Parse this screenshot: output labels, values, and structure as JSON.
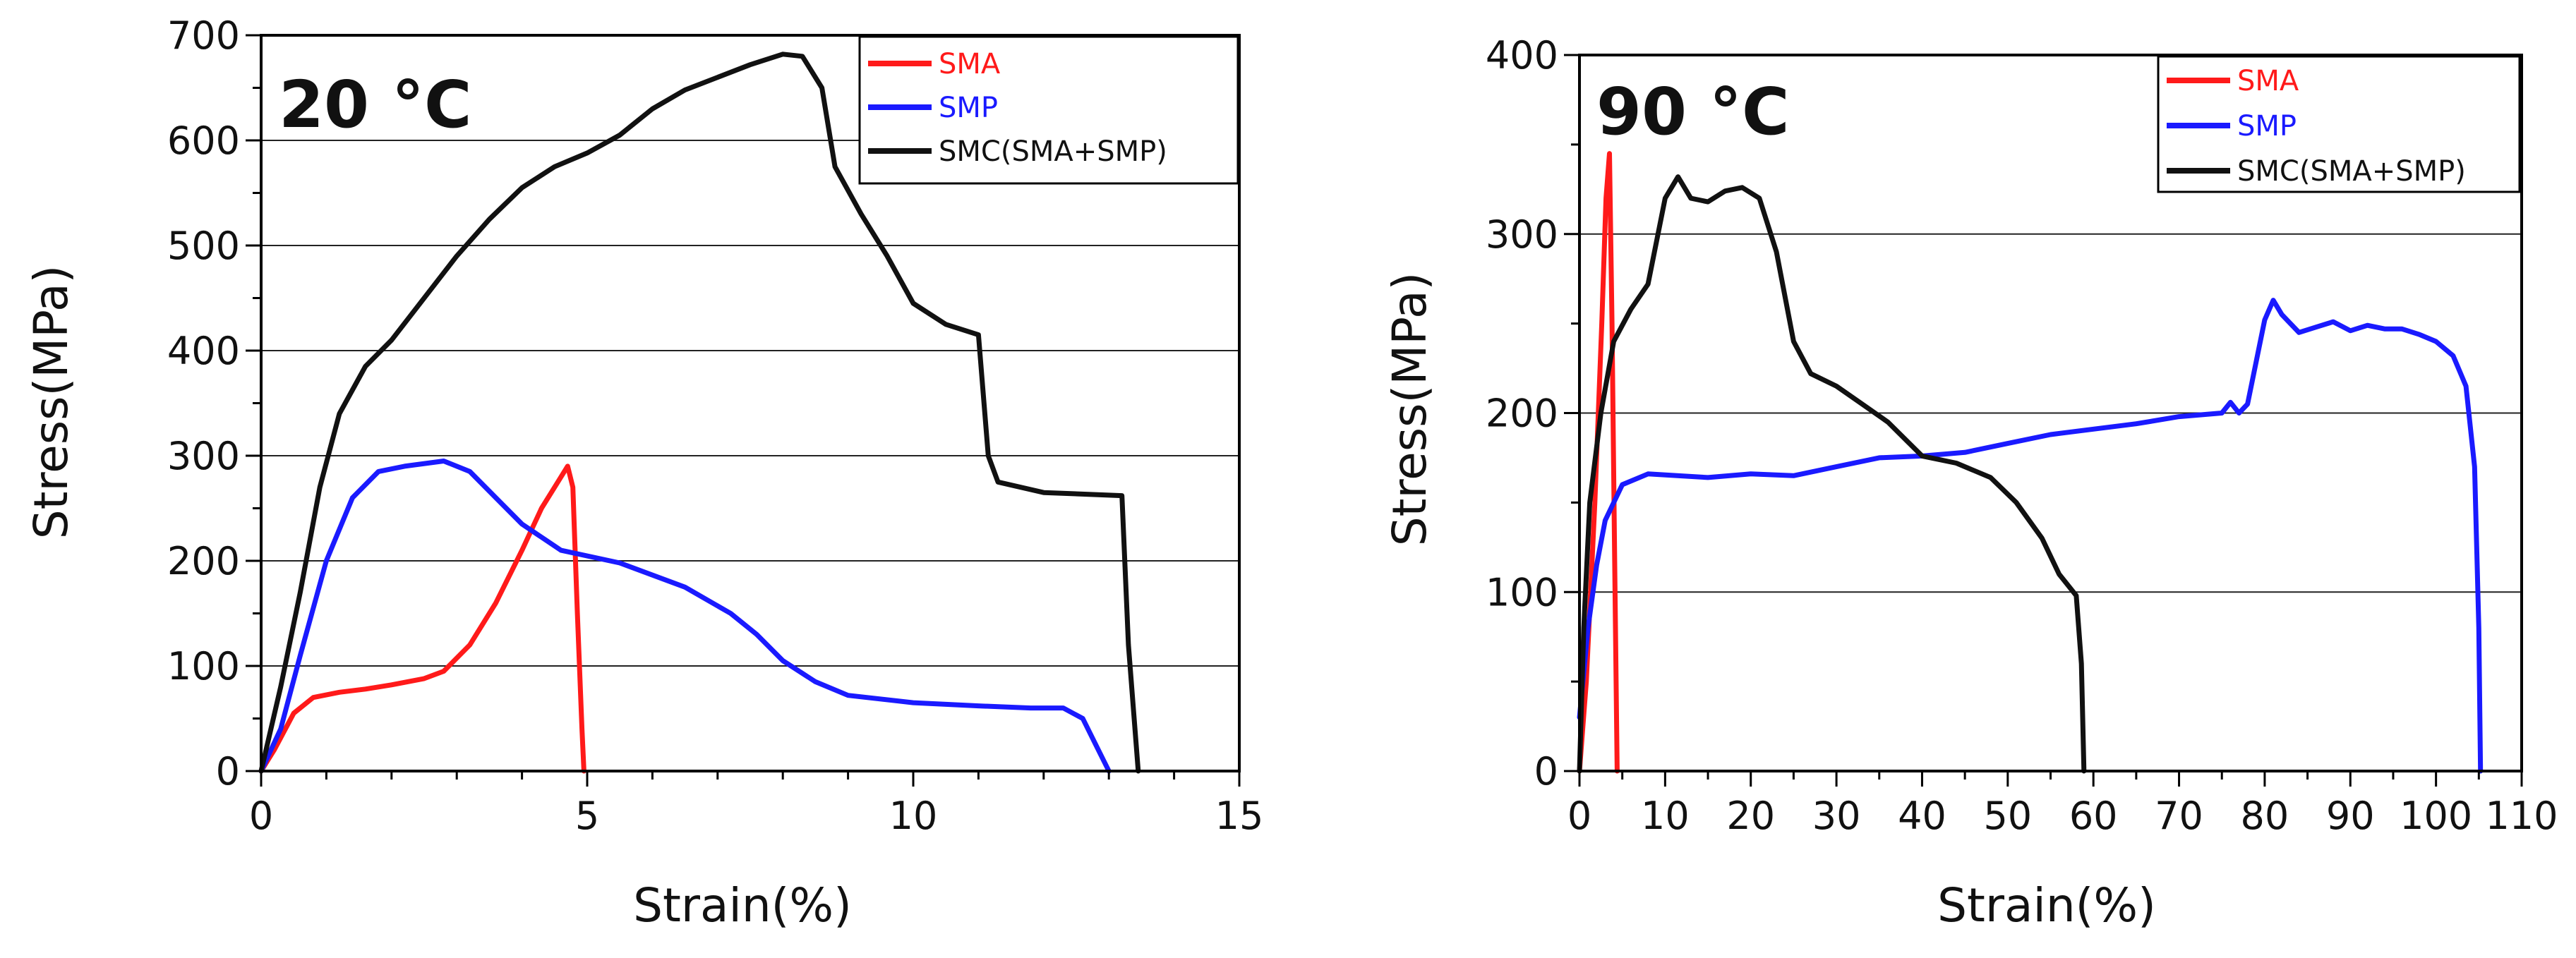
{
  "chart_data": [
    {
      "type": "line",
      "panel": "left",
      "title": "",
      "annotation": "20 °C",
      "xlabel": "Strain(%)",
      "ylabel": "Stress(MPa)",
      "xlim": [
        0,
        15
      ],
      "ylim": [
        0,
        700
      ],
      "xticks": [
        0,
        5,
        10,
        15
      ],
      "xtick_labels": [
        "0",
        "5",
        "10",
        "15"
      ],
      "yticks": [
        0,
        100,
        200,
        300,
        400,
        500,
        600,
        700
      ],
      "ytick_labels": [
        "0",
        "100",
        "200",
        "300",
        "400",
        "500",
        "600",
        "700"
      ],
      "x_minor_step": 1,
      "y_minor_step": 50,
      "grid": "horizontal",
      "legend_position": "top-right",
      "series": [
        {
          "name": "SMA",
          "color": "#ff1a1a",
          "points": [
            [
              0,
              0
            ],
            [
              0.2,
              20
            ],
            [
              0.5,
              55
            ],
            [
              0.8,
              70
            ],
            [
              1.2,
              75
            ],
            [
              1.6,
              78
            ],
            [
              2.0,
              82
            ],
            [
              2.5,
              88
            ],
            [
              2.8,
              95
            ],
            [
              3.2,
              120
            ],
            [
              3.6,
              160
            ],
            [
              4.0,
              210
            ],
            [
              4.3,
              250
            ],
            [
              4.55,
              275
            ],
            [
              4.7,
              290
            ],
            [
              4.78,
              270
            ],
            [
              4.85,
              150
            ],
            [
              4.92,
              40
            ],
            [
              4.95,
              0
            ]
          ]
        },
        {
          "name": "SMP",
          "color": "#1a1aff",
          "points": [
            [
              0,
              0
            ],
            [
              0.3,
              40
            ],
            [
              0.6,
              110
            ],
            [
              1.0,
              200
            ],
            [
              1.4,
              260
            ],
            [
              1.8,
              285
            ],
            [
              2.2,
              290
            ],
            [
              2.8,
              295
            ],
            [
              3.2,
              285
            ],
            [
              3.6,
              260
            ],
            [
              4.0,
              235
            ],
            [
              4.6,
              210
            ],
            [
              5.5,
              198
            ],
            [
              6.5,
              175
            ],
            [
              7.2,
              150
            ],
            [
              7.6,
              130
            ],
            [
              8.0,
              105
            ],
            [
              8.5,
              85
            ],
            [
              9.0,
              72
            ],
            [
              10.0,
              65
            ],
            [
              11.0,
              62
            ],
            [
              11.8,
              60
            ],
            [
              12.3,
              60
            ],
            [
              12.6,
              50
            ],
            [
              12.8,
              25
            ],
            [
              13.0,
              0
            ]
          ]
        },
        {
          "name": "SMC(SMA+SMP)",
          "color": "#111111",
          "points": [
            [
              0,
              0
            ],
            [
              0.3,
              80
            ],
            [
              0.6,
              170
            ],
            [
              0.9,
              270
            ],
            [
              1.2,
              340
            ],
            [
              1.6,
              385
            ],
            [
              2.0,
              410
            ],
            [
              2.5,
              450
            ],
            [
              3.0,
              490
            ],
            [
              3.5,
              525
            ],
            [
              4.0,
              555
            ],
            [
              4.5,
              575
            ],
            [
              5.0,
              588
            ],
            [
              5.5,
              605
            ],
            [
              6.0,
              630
            ],
            [
              6.5,
              648
            ],
            [
              7.0,
              660
            ],
            [
              7.5,
              672
            ],
            [
              8.0,
              682
            ],
            [
              8.3,
              680
            ],
            [
              8.6,
              650
            ],
            [
              8.8,
              575
            ],
            [
              9.2,
              530
            ],
            [
              9.6,
              490
            ],
            [
              10.0,
              445
            ],
            [
              10.5,
              425
            ],
            [
              11.0,
              415
            ],
            [
              11.15,
              300
            ],
            [
              11.3,
              275
            ],
            [
              12.0,
              265
            ],
            [
              13.2,
              262
            ],
            [
              13.3,
              120
            ],
            [
              13.45,
              0
            ]
          ]
        }
      ]
    },
    {
      "type": "line",
      "panel": "right",
      "title": "",
      "annotation": "90 °C",
      "xlabel": "Strain(%)",
      "ylabel": "Stress(MPa)",
      "xlim": [
        0,
        110
      ],
      "ylim": [
        0,
        400
      ],
      "xticks": [
        0,
        10,
        20,
        30,
        40,
        50,
        60,
        70,
        80,
        90,
        100,
        110
      ],
      "xtick_labels": [
        "0",
        "10",
        "20",
        "30",
        "40",
        "50",
        "60",
        "70",
        "80",
        "90",
        "100",
        "110"
      ],
      "yticks": [
        0,
        100,
        200,
        300,
        400
      ],
      "ytick_labels": [
        "0",
        "100",
        "200",
        "300",
        "400"
      ],
      "x_minor_step": 5,
      "y_minor_step": 50,
      "grid": "horizontal",
      "legend_position": "top-right",
      "series": [
        {
          "name": "SMA",
          "color": "#ff1a1a",
          "points": [
            [
              0,
              0
            ],
            [
              0.8,
              50
            ],
            [
              1.8,
              150
            ],
            [
              2.6,
              250
            ],
            [
              3.1,
              320
            ],
            [
              3.5,
              345
            ],
            [
              3.8,
              250
            ],
            [
              4.1,
              120
            ],
            [
              4.4,
              0
            ]
          ]
        },
        {
          "name": "SMP",
          "color": "#1a1aff",
          "points": [
            [
              0,
              30
            ],
            [
              1,
              80
            ],
            [
              2,
              115
            ],
            [
              3,
              140
            ],
            [
              5,
              160
            ],
            [
              8,
              166
            ],
            [
              15,
              164
            ],
            [
              20,
              166
            ],
            [
              25,
              165
            ],
            [
              30,
              170
            ],
            [
              35,
              175
            ],
            [
              40,
              176
            ],
            [
              45,
              178
            ],
            [
              50,
              183
            ],
            [
              55,
              188
            ],
            [
              60,
              191
            ],
            [
              65,
              194
            ],
            [
              70,
              198
            ],
            [
              75,
              200
            ],
            [
              76,
              206
            ],
            [
              77,
              200
            ],
            [
              78,
              205
            ],
            [
              80,
              252
            ],
            [
              81,
              263
            ],
            [
              82,
              255
            ],
            [
              84,
              245
            ],
            [
              86,
              248
            ],
            [
              88,
              251
            ],
            [
              90,
              246
            ],
            [
              92,
              249
            ],
            [
              94,
              247
            ],
            [
              96,
              247
            ],
            [
              98,
              244
            ],
            [
              100,
              240
            ],
            [
              102,
              232
            ],
            [
              103.5,
              215
            ],
            [
              104.5,
              170
            ],
            [
              105,
              80
            ],
            [
              105.2,
              0
            ]
          ]
        },
        {
          "name": "SMC(SMA+SMP)",
          "color": "#111111",
          "points": [
            [
              0,
              0
            ],
            [
              0.5,
              80
            ],
            [
              1.2,
              150
            ],
            [
              2.5,
              200
            ],
            [
              4,
              240
            ],
            [
              6,
              258
            ],
            [
              8,
              272
            ],
            [
              10,
              320
            ],
            [
              11.5,
              332
            ],
            [
              13,
              320
            ],
            [
              15,
              318
            ],
            [
              17,
              324
            ],
            [
              19,
              326
            ],
            [
              21,
              320
            ],
            [
              23,
              290
            ],
            [
              25,
              240
            ],
            [
              27,
              222
            ],
            [
              30,
              215
            ],
            [
              33,
              205
            ],
            [
              36,
              195
            ],
            [
              40,
              176
            ],
            [
              44,
              172
            ],
            [
              48,
              164
            ],
            [
              51,
              150
            ],
            [
              54,
              130
            ],
            [
              56,
              110
            ],
            [
              58,
              98
            ],
            [
              58.6,
              60
            ],
            [
              58.9,
              0
            ]
          ]
        }
      ]
    }
  ]
}
